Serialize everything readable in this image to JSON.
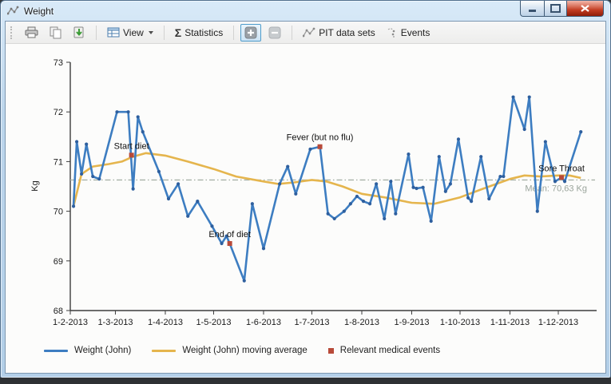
{
  "window": {
    "title": "Weight"
  },
  "toolbar": {
    "view_label": "View",
    "sigma": "Σ",
    "statistics_label": "Statistics",
    "pit_label": "PIT data sets",
    "events_label": "Events"
  },
  "chart_data": {
    "type": "line",
    "ylabel": "Kg",
    "ylim": [
      68,
      73
    ],
    "yticks": [
      68,
      69,
      70,
      71,
      72,
      73
    ],
    "xtick_labels": [
      "1-2-2013",
      "1-3-2013",
      "1-4-2013",
      "1-5-2013",
      "1-6-2013",
      "1-7-2013",
      "1-8-2013",
      "1-9-2013",
      "1-10-2013",
      "1-11-2013",
      "1-12-2013"
    ],
    "grid": false,
    "legend_position": "bottom",
    "mean": {
      "value": 70.63,
      "label": "Mean: 70,63 Kg",
      "line_color": "#a8b2a8",
      "label_color": "#9aa49b"
    },
    "series": [
      {
        "name": "Weight (John)",
        "color": "#3d7dc1",
        "point_color": "#2e5f9e",
        "points": [
          [
            "3-2",
            70.1
          ],
          [
            "5-2",
            71.4
          ],
          [
            "8-2",
            70.75
          ],
          [
            "11-2",
            71.35
          ],
          [
            "15-2",
            70.7
          ],
          [
            "19-2",
            70.65
          ],
          [
            "2-3",
            72.0
          ],
          [
            "9-3",
            72.0
          ],
          [
            "12-3",
            70.45
          ],
          [
            "15-3",
            71.9
          ],
          [
            "18-3",
            71.6
          ],
          [
            "28-3",
            70.8
          ],
          [
            "3-4",
            70.25
          ],
          [
            "9-4",
            70.55
          ],
          [
            "15-4",
            69.9
          ],
          [
            "21-4",
            70.2
          ],
          [
            "30-4",
            69.7
          ],
          [
            "6-5",
            69.35
          ],
          [
            "9-5",
            69.5
          ],
          [
            "11-5",
            69.35
          ],
          [
            "20-5",
            68.6
          ],
          [
            "25-5",
            70.15
          ],
          [
            "1-6",
            69.25
          ],
          [
            "11-6",
            70.55
          ],
          [
            "16-6",
            70.9
          ],
          [
            "21-6",
            70.35
          ],
          [
            "30-6",
            71.25
          ],
          [
            "6-7",
            71.3
          ],
          [
            "11-7",
            69.95
          ],
          [
            "15-7",
            69.85
          ],
          [
            "21-7",
            70.0
          ],
          [
            "25-7",
            70.15
          ],
          [
            "29-7",
            70.3
          ],
          [
            "2-8",
            70.2
          ],
          [
            "6-8",
            70.15
          ],
          [
            "10-8",
            70.55
          ],
          [
            "15-8",
            69.85
          ],
          [
            "19-8",
            70.6
          ],
          [
            "22-8",
            69.95
          ],
          [
            "30-8",
            71.15
          ],
          [
            "2-9",
            70.48
          ],
          [
            "4-9",
            70.46
          ],
          [
            "8-9",
            70.48
          ],
          [
            "13-9",
            69.8
          ],
          [
            "18-9",
            71.1
          ],
          [
            "22-9",
            70.4
          ],
          [
            "25-9",
            70.55
          ],
          [
            "30-9",
            71.45
          ],
          [
            "6-10",
            70.27
          ],
          [
            "8-10",
            70.2
          ],
          [
            "14-10",
            71.1
          ],
          [
            "19-10",
            70.25
          ],
          [
            "26-10",
            70.7
          ],
          [
            "28-10",
            70.7
          ],
          [
            "3-11",
            72.3
          ],
          [
            "10-11",
            71.65
          ],
          [
            "13-11",
            72.3
          ],
          [
            "18-11",
            70.0
          ],
          [
            "23-11",
            71.4
          ],
          [
            "29-11",
            70.6
          ],
          [
            "3-12",
            70.68
          ],
          [
            "5-12",
            70.6
          ],
          [
            "15-12",
            71.6
          ]
        ]
      },
      {
        "name": "Weight (John) moving average",
        "color": "#e5b54d",
        "points": [
          [
            "3-2",
            70.1
          ],
          [
            "8-2",
            70.75
          ],
          [
            "15-2",
            70.9
          ],
          [
            "25-2",
            70.95
          ],
          [
            "5-3",
            71.0
          ],
          [
            "12-3",
            71.1
          ],
          [
            "20-3",
            71.17
          ],
          [
            "1-4",
            71.12
          ],
          [
            "15-4",
            71.0
          ],
          [
            "1-5",
            70.85
          ],
          [
            "15-5",
            70.7
          ],
          [
            "1-6",
            70.6
          ],
          [
            "10-6",
            70.55
          ],
          [
            "20-6",
            70.58
          ],
          [
            "1-7",
            70.63
          ],
          [
            "10-7",
            70.6
          ],
          [
            "20-7",
            70.5
          ],
          [
            "1-8",
            70.35
          ],
          [
            "15-8",
            70.28
          ],
          [
            "1-9",
            70.17
          ],
          [
            "15-9",
            70.15
          ],
          [
            "1-10",
            70.28
          ],
          [
            "15-10",
            70.45
          ],
          [
            "1-11",
            70.65
          ],
          [
            "10-11",
            70.72
          ],
          [
            "20-11",
            70.7
          ],
          [
            "1-12",
            70.72
          ],
          [
            "8-12",
            70.72
          ],
          [
            "15-12",
            70.67
          ]
        ]
      }
    ],
    "events": {
      "name": "Relevant medical events",
      "color": "#b84a39",
      "items": [
        {
          "date": "11-3",
          "value": 71.13,
          "label": "Start diet"
        },
        {
          "date": "11-5",
          "value": 69.35,
          "label": "End of diet"
        },
        {
          "date": "6-7",
          "value": 71.3,
          "label": "Fever (but no flu)"
        },
        {
          "date": "3-12",
          "value": 70.68,
          "label": "Sore Throat"
        }
      ]
    }
  }
}
